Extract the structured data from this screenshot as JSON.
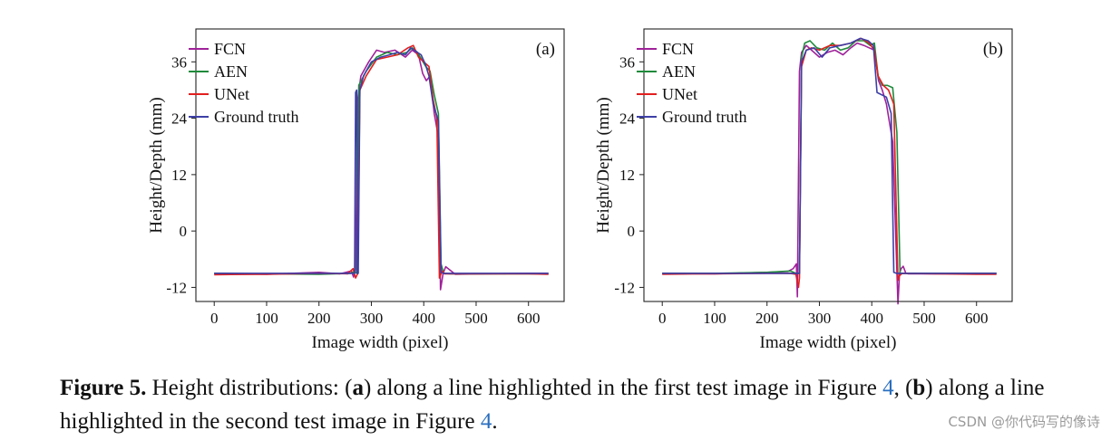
{
  "figure": {
    "caption": {
      "label": "Figure 5.",
      "t1": " Height distributions: (",
      "a": "a",
      "t2": ") along a line highlighted in the first test image in Figure ",
      "ref1": "4",
      "t3": ", (",
      "b": "b",
      "t4": ") along a line highlighted in the second test image in Figure ",
      "ref2": "4",
      "t5": "."
    },
    "watermark": "CSDN @你代码写的像诗"
  },
  "chart_data": [
    {
      "type": "line",
      "panel_label": "(a)",
      "xlabel": "Image width (pixel)",
      "ylabel": "Height/Depth (mm)",
      "xlim": [
        -35,
        668
      ],
      "ylim": [
        -15,
        43
      ],
      "xticks": [
        0,
        100,
        200,
        300,
        400,
        500,
        600
      ],
      "yticks": [
        -12,
        0,
        12,
        24,
        36
      ],
      "legend": "top-left",
      "series": [
        {
          "name": "FCN",
          "color": "#a0229a",
          "x": [
            0,
            100,
            200,
            240,
            255,
            262,
            266,
            270,
            274,
            280,
            295,
            310,
            325,
            345,
            365,
            378,
            390,
            398,
            405,
            412,
            420,
            428,
            432,
            437,
            442,
            460,
            520,
            600,
            638
          ],
          "y": [
            -9,
            -9.2,
            -8.8,
            -9.1,
            -8.7,
            -8.5,
            -9.8,
            -8,
            28,
            33,
            36,
            38.5,
            38,
            38.5,
            37,
            38.5,
            37.5,
            33.5,
            32,
            33,
            25,
            20,
            -12.5,
            -9,
            -7.6,
            -9.2,
            -9.1,
            -9,
            -9
          ]
        },
        {
          "name": "AEN",
          "color": "#1f8a3c",
          "x": [
            0,
            100,
            200,
            260,
            268,
            272,
            276,
            290,
            310,
            330,
            350,
            368,
            378,
            388,
            396,
            404,
            412,
            420,
            428,
            433,
            438,
            450,
            520,
            600,
            638
          ],
          "y": [
            -9,
            -9.1,
            -9.2,
            -9,
            -8.6,
            -9,
            31,
            34,
            37,
            38,
            37.5,
            38,
            39,
            38,
            36.5,
            35,
            34,
            29,
            25,
            -7,
            -9,
            -9.1,
            -9.1,
            -9.1,
            -9.1
          ]
        },
        {
          "name": "UNet",
          "color": "#e21f1f",
          "x": [
            0,
            100,
            200,
            255,
            265,
            270,
            274,
            278,
            290,
            310,
            330,
            350,
            370,
            380,
            390,
            400,
            410,
            418,
            425,
            430,
            435,
            440,
            520,
            600,
            638
          ],
          "y": [
            -9.3,
            -9.2,
            -9,
            -9.1,
            -8,
            -10,
            -9,
            30,
            33,
            36.5,
            37,
            37.5,
            39,
            39.5,
            37,
            36,
            35,
            28,
            24,
            -10,
            -8.5,
            -9.1,
            -9.1,
            -9.1,
            -9.2
          ]
        },
        {
          "name": "Ground truth",
          "color": "#3d3fa6",
          "x": [
            0,
            100,
            200,
            268,
            270,
            272,
            273,
            275,
            278,
            285,
            300,
            318,
            335,
            350,
            365,
            375,
            388,
            395,
            403,
            410,
            418,
            428,
            433,
            437,
            440,
            500,
            600,
            638
          ],
          "y": [
            -9,
            -9,
            -9,
            -9,
            29.5,
            30,
            -9,
            -9,
            30,
            33,
            36,
            37,
            37.5,
            38,
            37.5,
            39,
            38,
            37.5,
            35.5,
            33,
            27,
            23.5,
            -8.8,
            -9,
            -9,
            -9,
            -9,
            -9
          ]
        }
      ]
    },
    {
      "type": "line",
      "panel_label": "(b)",
      "xlabel": "Image width (pixel)",
      "ylabel": "Height/Depth (mm)",
      "xlim": [
        -35,
        668
      ],
      "ylim": [
        -15,
        43
      ],
      "xticks": [
        0,
        100,
        200,
        300,
        400,
        500,
        600
      ],
      "yticks": [
        -12,
        0,
        12,
        24,
        36
      ],
      "legend": "top-left",
      "series": [
        {
          "name": "FCN",
          "color": "#a0229a",
          "x": [
            0,
            100,
            200,
            240,
            250,
            256,
            258,
            262,
            266,
            275,
            285,
            300,
            315,
            330,
            345,
            360,
            372,
            385,
            395,
            405,
            413,
            420,
            428,
            440,
            450,
            453,
            456,
            460,
            465,
            470,
            520,
            600,
            638
          ],
          "y": [
            -9,
            -9.1,
            -8.8,
            -8.6,
            -8,
            -7,
            -14,
            34,
            38,
            39.5,
            38.5,
            37,
            38,
            38.5,
            37.5,
            39,
            40,
            39.5,
            39,
            38.5,
            32,
            30,
            27,
            19,
            -15.5,
            -9,
            -8,
            -7.5,
            -9,
            -9.1,
            -9.1,
            -9,
            -9
          ]
        },
        {
          "name": "AEN",
          "color": "#1f8a3c",
          "x": [
            0,
            100,
            200,
            245,
            255,
            262,
            266,
            272,
            282,
            295,
            310,
            325,
            340,
            355,
            370,
            385,
            397,
            405,
            412,
            420,
            430,
            440,
            448,
            454,
            460,
            520,
            600,
            638
          ],
          "y": [
            -9,
            -9,
            -8.8,
            -8.5,
            -9,
            -9,
            37,
            40,
            40.5,
            39,
            38.5,
            40,
            38.5,
            39,
            40.5,
            40.5,
            39.5,
            40,
            33,
            31,
            31,
            30.5,
            21,
            -9,
            -9,
            -9,
            -9,
            -9
          ]
        },
        {
          "name": "UNet",
          "color": "#e21f1f",
          "x": [
            0,
            100,
            200,
            245,
            255,
            260,
            262,
            266,
            275,
            285,
            300,
            320,
            340,
            360,
            380,
            395,
            405,
            412,
            422,
            432,
            442,
            450,
            453,
            458,
            520,
            600,
            638
          ],
          "y": [
            -9.2,
            -9.1,
            -9,
            -9,
            -9.2,
            -12,
            -10,
            35,
            38.5,
            39,
            38.5,
            39.5,
            39.5,
            40,
            41,
            40,
            38.5,
            33,
            31,
            30,
            27,
            -10.5,
            -9.5,
            -9,
            -9.1,
            -9.2,
            -9.2
          ]
        },
        {
          "name": "Ground truth",
          "color": "#3d3fa6",
          "x": [
            0,
            100,
            200,
            255,
            262,
            266,
            275,
            290,
            305,
            320,
            340,
            360,
            378,
            393,
            403,
            410,
            428,
            437,
            442,
            447,
            452,
            520,
            600,
            638
          ],
          "y": [
            -9,
            -9,
            -9,
            -9,
            -9,
            36,
            38.5,
            39,
            37,
            39,
            39.5,
            40,
            41,
            40.5,
            39.5,
            29.5,
            28.5,
            25,
            -8.8,
            -9,
            -9,
            -9,
            -9,
            -9
          ]
        }
      ]
    }
  ]
}
